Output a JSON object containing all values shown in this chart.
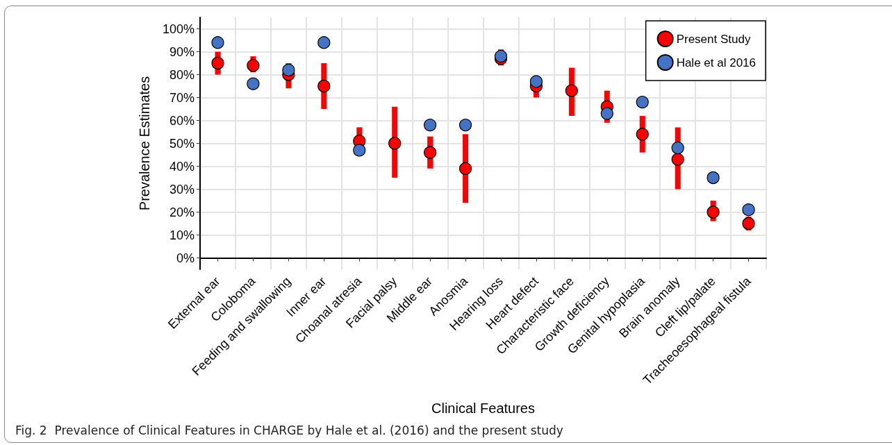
{
  "chart_data": {
    "type": "scatter",
    "xlabel": "Clinical Features",
    "ylabel": "Prevalence Estimates",
    "annotations": [
      "Fig. 2  Prevalence of Clinical Features in CHARGE by Hale et al. (2016) and the present study"
    ],
    "categories": [
      "External ear",
      "Coloboma",
      "Feeding and swallowing",
      "Inner ear",
      "Choanal atresia",
      "Facial palsy",
      "Middle ear",
      "Anosmia",
      "Hearing loss",
      "Heart defect",
      "Characteristic face",
      "Growth deficiency",
      "Genital hypoplasia",
      "Brain anomaly",
      "Cleft lip/palate",
      "Tracheoesophageal fistula"
    ],
    "series": [
      {
        "name": "Present Study",
        "color": "#ff0000",
        "values": [
          85,
          84,
          80,
          75,
          51,
          50,
          46,
          39,
          87,
          75,
          73,
          66,
          54,
          43,
          20,
          15
        ],
        "errors": [
          [
            80,
            90
          ],
          [
            81,
            88
          ],
          [
            74,
            85
          ],
          [
            65,
            85
          ],
          [
            51,
            57
          ],
          [
            35,
            66
          ],
          [
            39,
            53
          ],
          [
            24,
            54
          ],
          [
            84,
            91
          ],
          [
            70,
            79
          ],
          [
            62,
            83
          ],
          [
            59,
            73
          ],
          [
            46,
            62
          ],
          [
            30,
            57
          ],
          [
            16,
            25
          ],
          [
            12,
            18
          ]
        ]
      },
      {
        "name": "Hale et al 2016",
        "color": "#4472c4",
        "values": [
          94,
          76,
          82,
          94,
          47,
          null,
          58,
          58,
          88,
          77,
          null,
          63,
          68,
          48,
          35,
          21
        ]
      }
    ],
    "ylim": [
      -5,
      105
    ],
    "yticks": [
      {
        "value": 0,
        "label": "0%"
      },
      {
        "value": 10,
        "label": "10%"
      },
      {
        "value": 20,
        "label": "20%"
      },
      {
        "value": 30,
        "label": "30%"
      },
      {
        "value": 40,
        "label": "40%"
      },
      {
        "value": 50,
        "label": "50%"
      },
      {
        "value": 60,
        "label": "60%"
      },
      {
        "value": 70,
        "label": "70%"
      },
      {
        "value": 80,
        "label": "80%"
      },
      {
        "value": 90,
        "label": "90%"
      },
      {
        "value": 100,
        "label": "100%"
      }
    ],
    "grid": true,
    "legend": "top right",
    "marker": "circle"
  }
}
